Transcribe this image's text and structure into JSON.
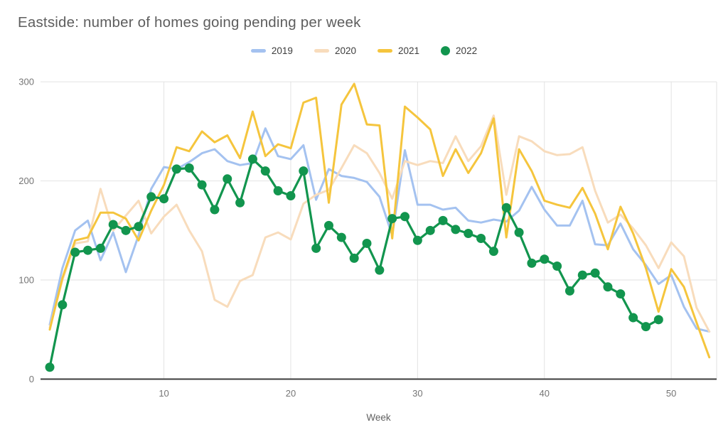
{
  "chart_data": {
    "type": "line",
    "title": "Eastside: number of homes going pending per week",
    "xlabel": "Week",
    "x_ticks": [
      10,
      20,
      30,
      40,
      50
    ],
    "y_ticks": [
      0,
      100,
      200,
      300
    ],
    "xlim": [
      1,
      53
    ],
    "ylim": [
      0,
      300
    ],
    "grid": true,
    "legend_position": "top-center",
    "series": [
      {
        "name": "2019",
        "color": "#a4c2f0",
        "marker": false,
        "values": [
          55,
          112,
          150,
          160,
          120,
          148,
          108,
          145,
          192,
          214,
          212,
          219,
          228,
          232,
          220,
          216,
          218,
          253,
          225,
          222,
          236,
          181,
          212,
          205,
          203,
          199,
          184,
          145,
          231,
          176,
          176,
          171,
          173,
          160,
          158,
          161,
          159,
          170,
          194,
          171,
          155,
          155,
          180,
          136,
          135,
          157,
          131,
          115,
          96,
          105,
          73,
          51,
          48
        ]
      },
      {
        "name": "2020",
        "color": "#f8dcbc",
        "marker": false,
        "values": [
          52,
          100,
          137,
          139,
          192,
          150,
          165,
          180,
          147,
          164,
          176,
          150,
          129,
          80,
          73,
          99,
          105,
          143,
          148,
          141,
          177,
          186,
          191,
          213,
          236,
          228,
          208,
          182,
          220,
          216,
          220,
          218,
          245,
          220,
          235,
          266,
          186,
          245,
          240,
          230,
          226,
          227,
          234,
          190,
          158,
          166,
          152,
          135,
          112,
          138,
          124,
          72,
          48
        ]
      },
      {
        "name": "2021",
        "color": "#f5c53d",
        "marker": false,
        "values": [
          50,
          102,
          140,
          143,
          168,
          168,
          162,
          140,
          170,
          196,
          234,
          230,
          250,
          239,
          246,
          223,
          270,
          225,
          237,
          233,
          279,
          284,
          178,
          277,
          298,
          257,
          256,
          142,
          275,
          264,
          252,
          205,
          232,
          208,
          228,
          263,
          143,
          232,
          210,
          180,
          176,
          173,
          193,
          167,
          131,
          174,
          147,
          112,
          68,
          111,
          93,
          57,
          22
        ]
      },
      {
        "name": "2022",
        "color": "#12954e",
        "marker": true,
        "values": [
          12,
          75,
          128,
          130,
          132,
          156,
          150,
          154,
          184,
          182,
          212,
          213,
          196,
          171,
          202,
          178,
          222,
          210,
          190,
          185,
          210,
          132,
          155,
          143,
          122,
          137,
          110,
          162,
          164,
          140,
          150,
          160,
          151,
          147,
          142,
          129,
          173,
          148,
          117,
          121,
          114,
          89,
          105,
          107,
          93,
          86,
          62,
          53,
          60,
          null,
          null,
          null,
          null
        ]
      }
    ]
  },
  "layout_colors": {
    "gridline": "#e2e2e2",
    "axis_line": "#3d3d3d",
    "tick_label": "#757575"
  }
}
